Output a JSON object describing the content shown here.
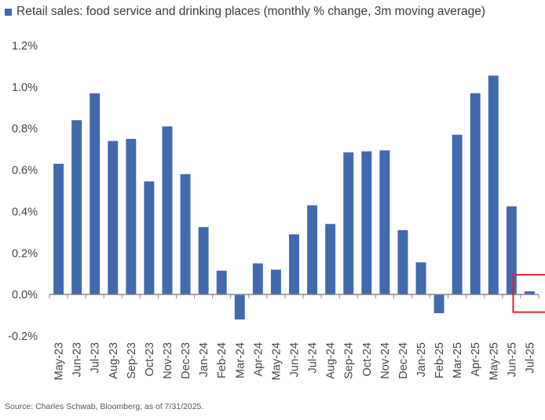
{
  "chart_data": {
    "type": "bar",
    "title": "Retail sales: food service and drinking places (monthly % change, 3m moving average)",
    "source": "Source: Charles Schwab, Bloomberg, as of 7/31/2025.",
    "categories": [
      "May-23",
      "Jun-23",
      "Jul-23",
      "Aug-23",
      "Sep-23",
      "Oct-23",
      "Nov-23",
      "Dec-23",
      "Jan-24",
      "Feb-24",
      "Mar-24",
      "Apr-24",
      "May-24",
      "Jun-24",
      "Jul-24",
      "Aug-24",
      "Sep-24",
      "Oct-24",
      "Nov-24",
      "Dec-24",
      "Jan-25",
      "Feb-25",
      "Mar-25",
      "Apr-25",
      "May-25",
      "Jun-25",
      "Jul-25"
    ],
    "values": [
      0.63,
      0.84,
      0.97,
      0.74,
      0.75,
      0.545,
      0.81,
      0.58,
      0.325,
      0.115,
      -0.12,
      0.15,
      0.12,
      0.29,
      0.43,
      0.34,
      0.685,
      0.69,
      0.695,
      0.31,
      0.155,
      -0.09,
      0.77,
      0.97,
      1.055,
      0.425,
      0.015
    ],
    "ylim": [
      -0.2,
      1.2
    ],
    "yticks": [
      -0.2,
      0.0,
      0.2,
      0.4,
      0.6,
      0.8,
      1.0,
      1.2
    ],
    "ytick_labels": [
      "-0.2%",
      "0.0%",
      "0.2%",
      "0.4%",
      "0.6%",
      "0.8%",
      "1.0%",
      "1.2%"
    ],
    "grid": false,
    "legend": "top-left",
    "bar_color": "#4169ae",
    "highlight_color": "#d9262c",
    "highlight_category": "Jul-25"
  }
}
